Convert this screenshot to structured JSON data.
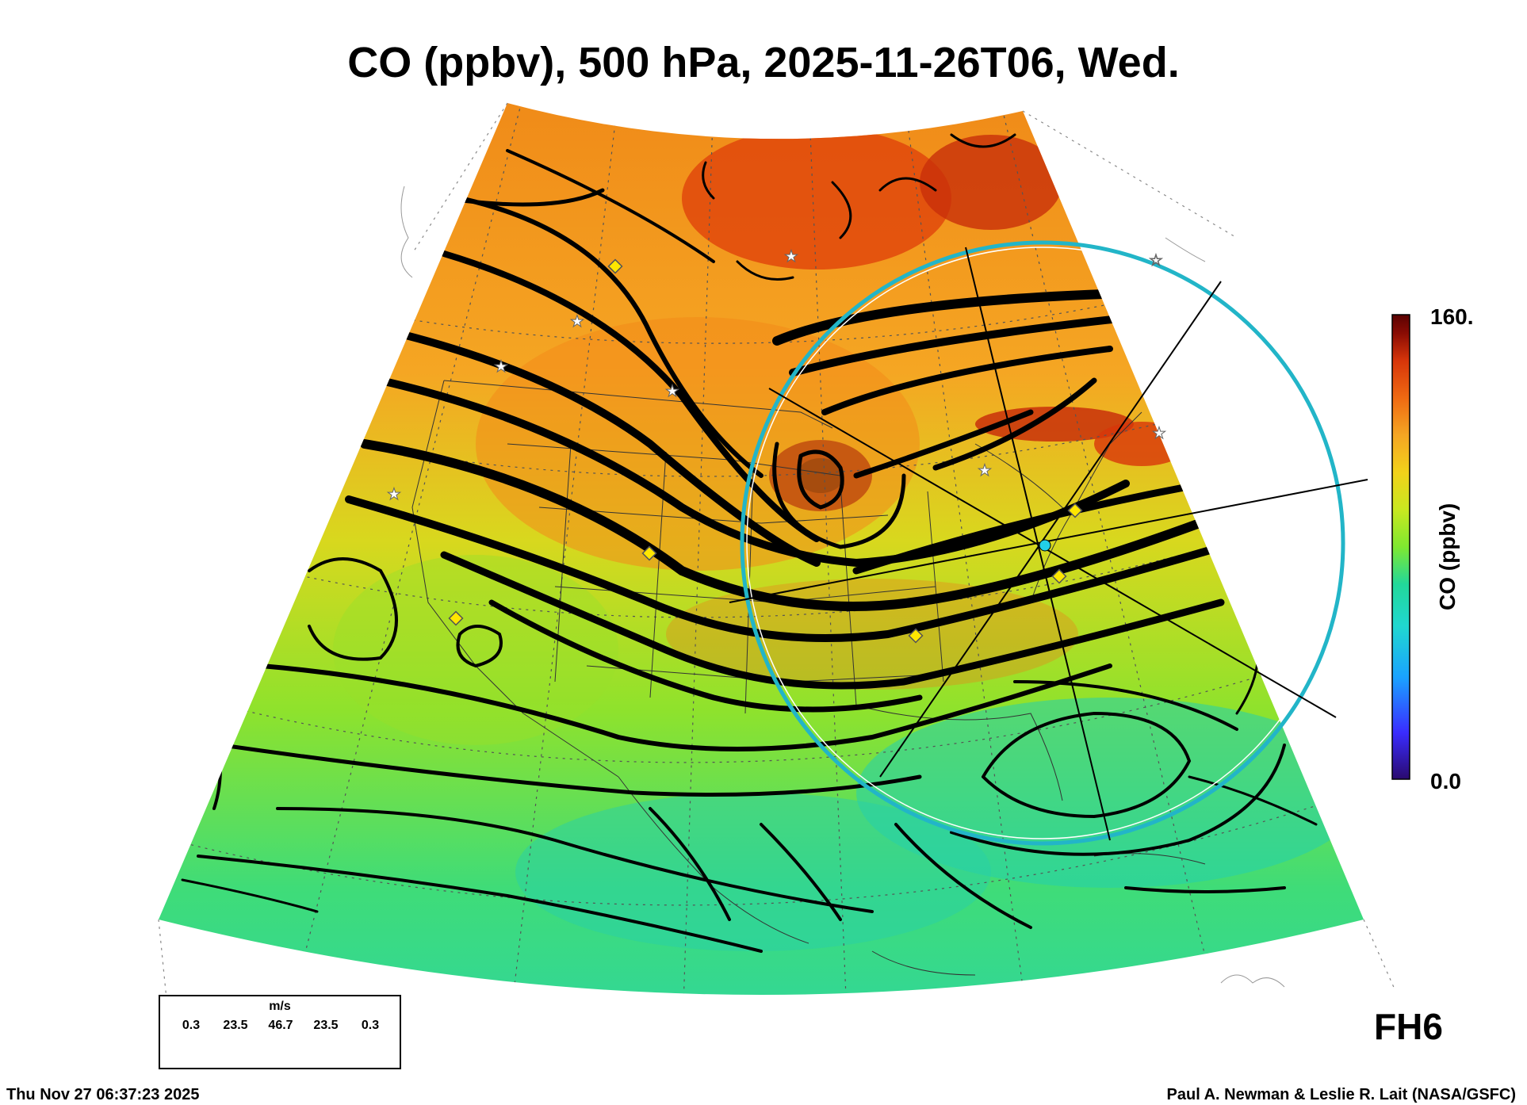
{
  "title": "CO (ppbv), 500 hPa, 2025-11-26T06, Wed.",
  "colorbar": {
    "max_label": "160.",
    "min_label": "0.0",
    "title": "CO (ppbv)",
    "range": [
      0,
      160
    ],
    "stops": [
      "#2a0a6e",
      "#3a2cff",
      "#1aa3ff",
      "#20d8d0",
      "#22d89a",
      "#7fe830",
      "#c8e820",
      "#f2d21a",
      "#f5a623",
      "#ef6a12",
      "#d8360a",
      "#8a0c04",
      "#5a0202"
    ]
  },
  "forecast_hour": "FH6",
  "footer": {
    "timestamp": "Thu Nov 27 06:37:23 2025",
    "credit": "Paul A. Newman & Leslie R. Lait (NASA/GSFC)"
  },
  "wind_legend": {
    "unit": "m/s",
    "scale_values": [
      "0.3",
      "23.5",
      "46.7",
      "23.5",
      "0.3"
    ]
  },
  "map": {
    "projection": "conic",
    "region": "North America",
    "field": "CO mixing ratio at 500 hPa",
    "overlays": [
      "wind streamlines",
      "state and country boundaries",
      "lat/lon grid",
      "range circle",
      "site markers"
    ],
    "colors": {
      "streamline": "#000000",
      "range_circle": "#22b5c8",
      "site_marker": "#ffe600",
      "station_star": "#ffffff"
    }
  }
}
